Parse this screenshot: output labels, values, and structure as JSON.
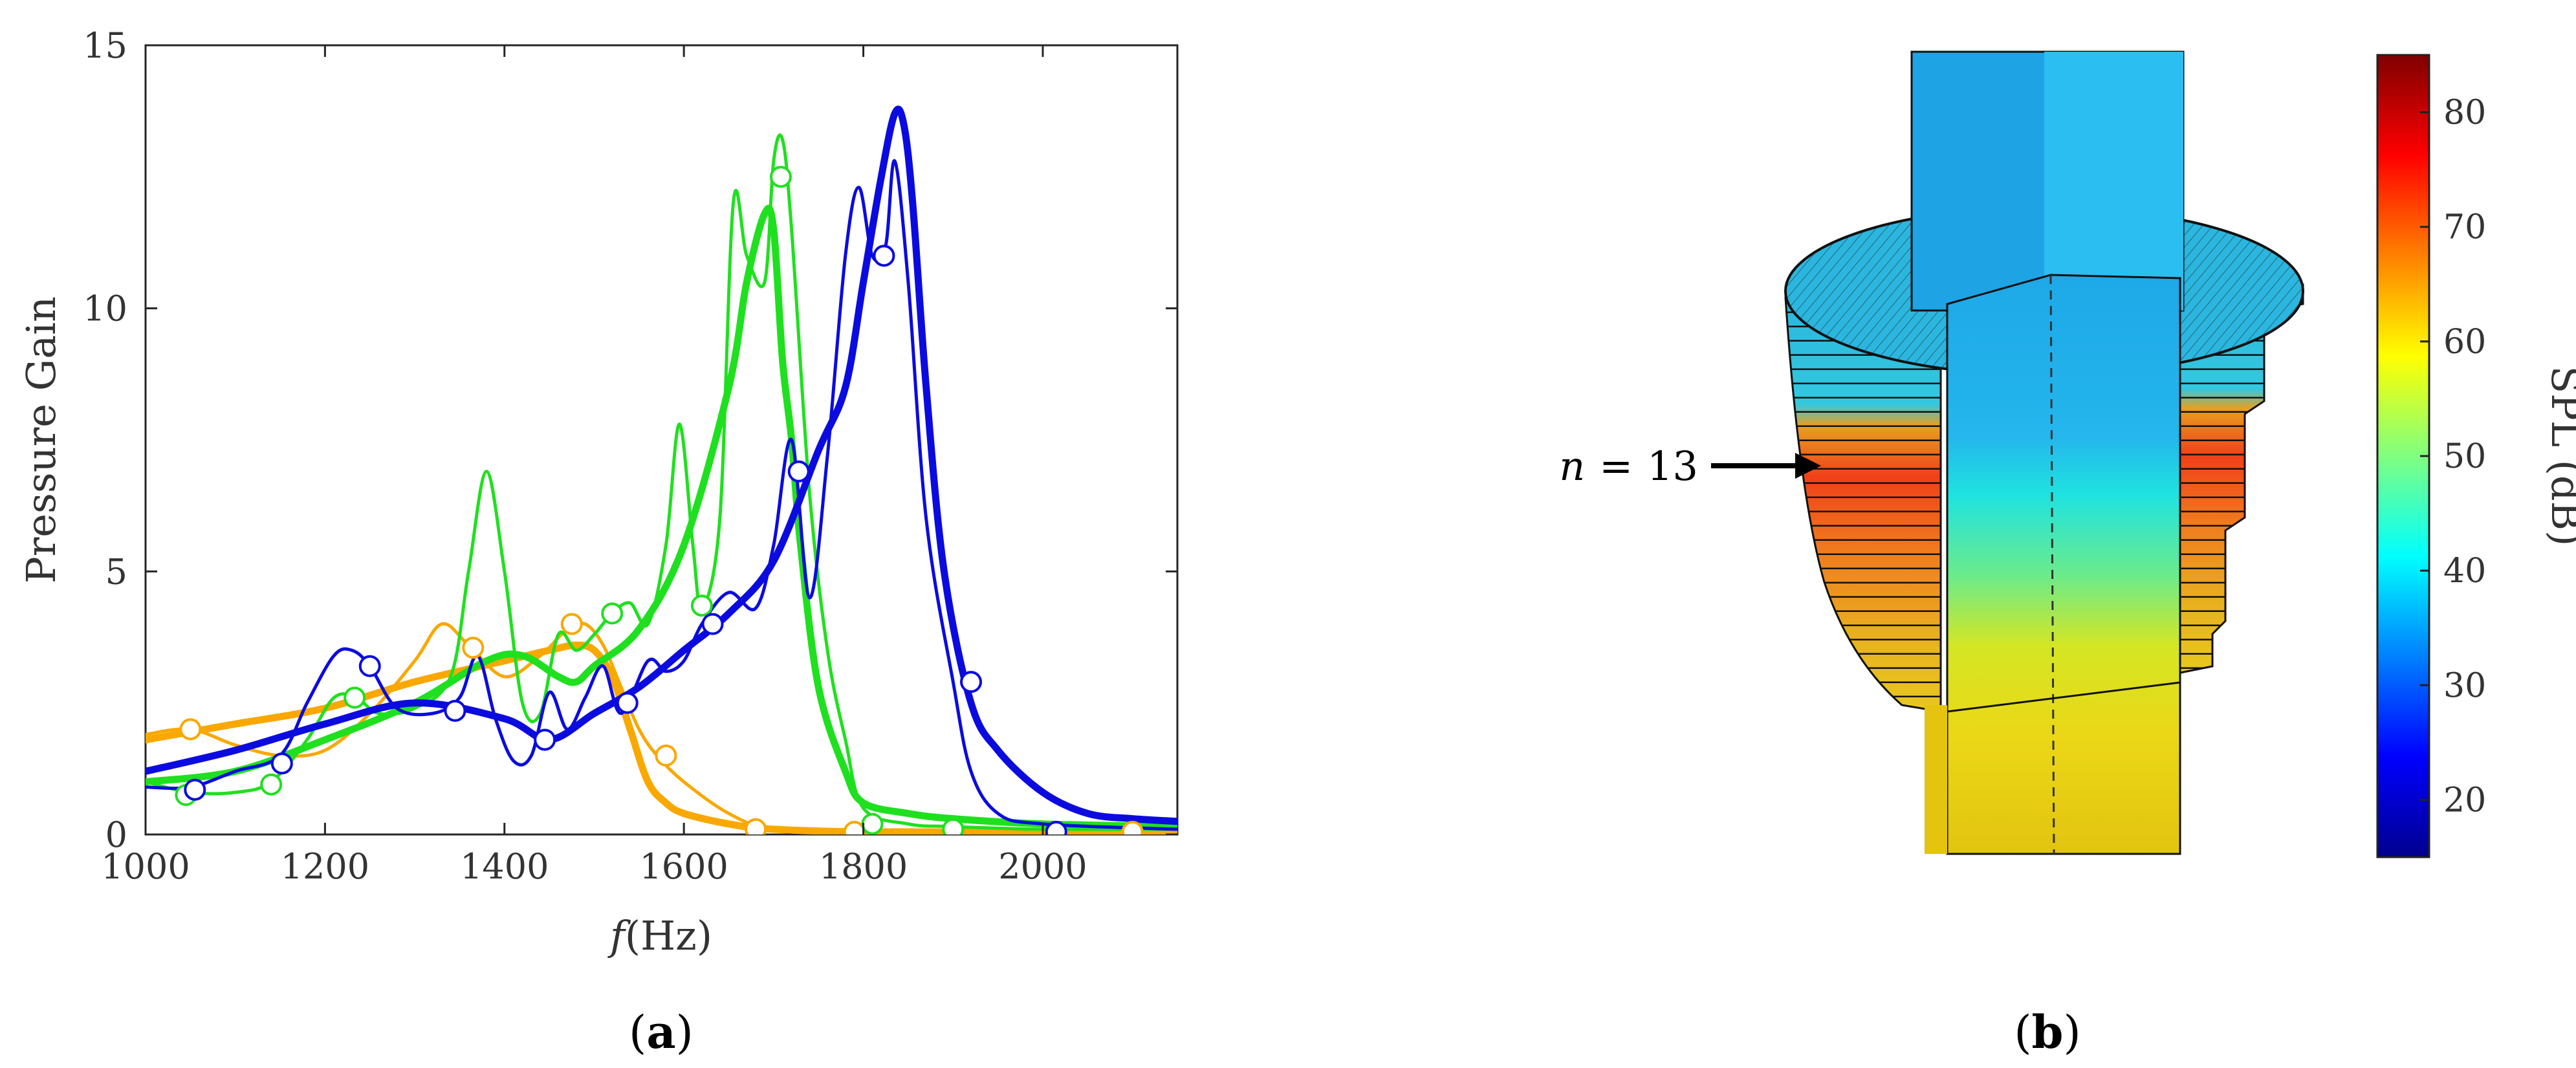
{
  "panels": {
    "a": {
      "open": "(",
      "letter": "a",
      "close": ")"
    },
    "b": {
      "open": "(",
      "letter": "b",
      "close": ")"
    }
  },
  "chart_data": [
    {
      "type": "line",
      "xlabel": {
        "symbol": "f",
        "unit": "(Hz)"
      },
      "ylabel": "Pressure Gain",
      "xlim": [
        1000,
        2150
      ],
      "ylim": [
        0,
        15
      ],
      "xticks": [
        1000,
        1200,
        1400,
        1600,
        1800,
        2000
      ],
      "yticks": [
        0,
        5,
        10,
        15
      ],
      "grid": false,
      "colors": {
        "orange": "#F9A800",
        "green": "#1FE01F",
        "blue": "#0B0BE0"
      },
      "series": [
        {
          "color": "orange",
          "style": "thin",
          "x": [
            1000,
            1050,
            1100,
            1150,
            1200,
            1250,
            1300,
            1330,
            1360,
            1400,
            1440,
            1470,
            1490,
            1510,
            1530,
            1550,
            1570,
            1600,
            1650,
            1700,
            1800,
            1900,
            2000,
            2150
          ],
          "y": [
            1.9,
            2.0,
            1.7,
            1.5,
            1.6,
            2.3,
            3.3,
            4.0,
            3.6,
            3.0,
            3.4,
            3.9,
            4.0,
            3.6,
            2.8,
            2.0,
            1.5,
            1.0,
            0.4,
            0.1,
            0.05,
            0.05,
            0.05,
            0.05
          ]
        },
        {
          "color": "orange",
          "style": "thick",
          "x": [
            1000,
            1100,
            1200,
            1300,
            1400,
            1450,
            1480,
            1500,
            1520,
            1540,
            1560,
            1580,
            1600,
            1650,
            1700,
            1800,
            2000,
            2150
          ],
          "y": [
            1.8,
            2.1,
            2.4,
            2.9,
            3.3,
            3.5,
            3.6,
            3.5,
            3.0,
            2.0,
            1.0,
            0.6,
            0.4,
            0.2,
            0.1,
            0.05,
            0.05,
            0.05
          ]
        },
        {
          "color": "green",
          "style": "thin",
          "x": [
            1000,
            1050,
            1100,
            1140,
            1180,
            1210,
            1235,
            1260,
            1300,
            1340,
            1360,
            1380,
            1400,
            1420,
            1440,
            1460,
            1480,
            1500,
            1520,
            1540,
            1560,
            1580,
            1595,
            1610,
            1620,
            1640,
            1655,
            1670,
            1690,
            1700,
            1710,
            1720,
            1740,
            1760,
            1780,
            1800,
            1850,
            1900,
            2000,
            2150
          ],
          "y": [
            1.0,
            0.8,
            0.8,
            1.0,
            1.8,
            2.6,
            2.6,
            2.3,
            2.4,
            3.0,
            5.0,
            6.9,
            5.0,
            2.5,
            2.3,
            3.8,
            3.5,
            3.8,
            4.2,
            4.4,
            4.0,
            5.5,
            7.8,
            5.5,
            4.3,
            6.0,
            12.0,
            11.0,
            10.5,
            12.8,
            13.2,
            11.5,
            6.5,
            3.5,
            1.8,
            0.5,
            0.2,
            0.15,
            0.1,
            0.1
          ]
        },
        {
          "color": "green",
          "style": "thick",
          "x": [
            1000,
            1100,
            1200,
            1300,
            1380,
            1420,
            1460,
            1480,
            1500,
            1550,
            1600,
            1650,
            1670,
            1690,
            1700,
            1710,
            1720,
            1730,
            1750,
            1780,
            1800,
            1850,
            1900,
            2000,
            2150
          ],
          "y": [
            1.0,
            1.2,
            1.8,
            2.5,
            3.3,
            3.4,
            3.0,
            2.9,
            3.2,
            3.9,
            5.5,
            8.5,
            10.5,
            11.8,
            11.5,
            9.0,
            7.5,
            5.5,
            2.8,
            1.2,
            0.6,
            0.4,
            0.3,
            0.2,
            0.15
          ]
        },
        {
          "color": "blue",
          "style": "thin",
          "x": [
            1000,
            1050,
            1100,
            1150,
            1180,
            1210,
            1230,
            1250,
            1280,
            1320,
            1350,
            1370,
            1390,
            1410,
            1430,
            1450,
            1470,
            1490,
            1510,
            1530,
            1560,
            1580,
            1600,
            1620,
            1650,
            1680,
            1700,
            1720,
            1740,
            1760,
            1780,
            1795,
            1810,
            1825,
            1835,
            1850,
            1870,
            1900,
            1920,
            1950,
            2000,
            2150
          ],
          "y": [
            0.9,
            0.9,
            1.2,
            1.5,
            2.5,
            3.4,
            3.5,
            3.2,
            2.4,
            2.3,
            2.6,
            3.4,
            2.2,
            1.4,
            1.5,
            2.7,
            2.0,
            2.6,
            3.2,
            2.3,
            3.3,
            3.1,
            3.3,
            4.0,
            4.6,
            4.3,
            5.5,
            7.5,
            4.5,
            7.2,
            11.0,
            12.3,
            11.0,
            11.2,
            12.8,
            10.5,
            6.0,
            2.9,
            1.2,
            0.4,
            0.2,
            0.1
          ]
        },
        {
          "color": "blue",
          "style": "thick",
          "x": [
            1000,
            1100,
            1200,
            1300,
            1400,
            1450,
            1500,
            1550,
            1600,
            1650,
            1700,
            1750,
            1780,
            1800,
            1820,
            1835,
            1845,
            1855,
            1870,
            1890,
            1920,
            1950,
            2000,
            2050,
            2100,
            2150
          ],
          "y": [
            1.2,
            1.6,
            2.1,
            2.5,
            2.2,
            1.8,
            2.3,
            2.8,
            3.5,
            4.2,
            5.2,
            7.3,
            8.5,
            10.5,
            12.5,
            13.7,
            13.5,
            12.0,
            8.5,
            5.0,
            2.5,
            1.6,
            0.8,
            0.4,
            0.3,
            0.25
          ]
        }
      ],
      "markers": [
        {
          "color": "orange",
          "x": [
            1050,
            1365,
            1475,
            1580,
            1680,
            1790,
            1900,
            2100
          ],
          "y": [
            2.0,
            3.55,
            4.0,
            1.5,
            0.1,
            0.05,
            0.05,
            0.05
          ]
        },
        {
          "color": "green",
          "x": [
            1045,
            1140,
            1233,
            1520,
            1620,
            1708,
            1810,
            1900
          ],
          "y": [
            0.75,
            0.95,
            2.6,
            4.2,
            4.35,
            12.5,
            0.2,
            0.1
          ]
        },
        {
          "color": "blue",
          "x": [
            1055,
            1152,
            1250,
            1345,
            1445,
            1537,
            1632,
            1728,
            1823,
            1920,
            2015
          ],
          "y": [
            0.85,
            1.35,
            3.2,
            2.35,
            1.8,
            2.5,
            4.0,
            6.9,
            11.0,
            2.9,
            0.05
          ]
        }
      ]
    }
  ],
  "panel_b": {
    "annotation": {
      "var": "n",
      "eq": "=",
      "value": "13"
    },
    "colorbar": {
      "label": "SPL (dB)",
      "range": [
        15,
        85
      ],
      "ticks": [
        "20",
        "30",
        "40",
        "50",
        "60",
        "70",
        "80"
      ],
      "colormap": [
        "#00008F",
        "#0000FF",
        "#0080FF",
        "#00FFFF",
        "#80FF80",
        "#FFFF00",
        "#FF8000",
        "#FF0000",
        "#800000"
      ]
    }
  }
}
